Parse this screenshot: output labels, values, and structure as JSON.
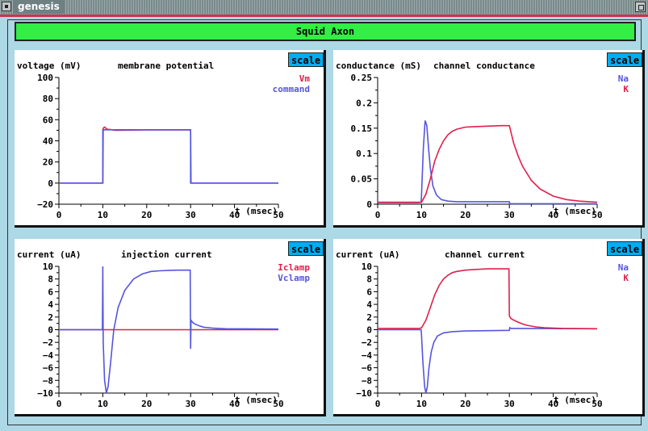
{
  "window": {
    "title": "genesis"
  },
  "header": {
    "label": "Squid Axon"
  },
  "colors": {
    "red": "#e0204a",
    "blue": "#5555dd"
  },
  "graphs": [
    {
      "id": "membrane",
      "ylabel": "voltage (mV)",
      "title": "membrane potential",
      "xlabel": "t (msec)",
      "scale_label": "scale",
      "legend": [
        "Vm",
        "command"
      ],
      "x_ticks": [
        "0",
        "10",
        "20",
        "30",
        "40",
        "50"
      ],
      "y_ticks": [
        "100",
        "80",
        "60",
        "40",
        "20",
        "0",
        "−20"
      ]
    },
    {
      "id": "conductance",
      "ylabel": "conductance (mS)",
      "title": "channel conductance",
      "xlabel": "t (msec)",
      "scale_label": "scale",
      "legend": [
        "Na",
        "K"
      ],
      "x_ticks": [
        "0",
        "10",
        "20",
        "30",
        "40",
        "50"
      ],
      "y_ticks": [
        "0.25",
        "0.2",
        "0.15",
        "0.1",
        "0.05",
        "0"
      ]
    },
    {
      "id": "injection",
      "ylabel": "current (uA)",
      "title": "injection current",
      "xlabel": "t (msec)",
      "scale_label": "scale",
      "legend": [
        "Iclamp",
        "Vclamp"
      ],
      "x_ticks": [
        "0",
        "10",
        "20",
        "30",
        "40",
        "50"
      ],
      "y_ticks": [
        "10",
        "8",
        "6",
        "4",
        "2",
        "0",
        "−2",
        "−4",
        "−6",
        "−8",
        "−10"
      ]
    },
    {
      "id": "channel",
      "ylabel": "current (uA)",
      "title": "channel current",
      "xlabel": "t (msec)",
      "scale_label": "scale",
      "legend": [
        "Na",
        "K"
      ],
      "x_ticks": [
        "0",
        "10",
        "20",
        "30",
        "40",
        "50"
      ],
      "y_ticks": [
        "10",
        "8",
        "6",
        "4",
        "2",
        "0",
        "−2",
        "−4",
        "−6",
        "−8",
        "−10"
      ]
    }
  ],
  "chart_data": [
    {
      "type": "line",
      "xlim": [
        0,
        50
      ],
      "ylim": [
        -20,
        100
      ],
      "series": [
        {
          "name": "Vm",
          "color": "#e0204a",
          "x": [
            0,
            10,
            10.1,
            10.4,
            11,
            13,
            16,
            20,
            29.9,
            30,
            30.1,
            50
          ],
          "y": [
            0,
            0,
            52,
            53,
            51,
            50,
            50.2,
            50.4,
            50.5,
            50.5,
            0,
            0
          ]
        },
        {
          "name": "command",
          "color": "#5555dd",
          "x": [
            0,
            10,
            10,
            30,
            30,
            50
          ],
          "y": [
            0,
            0,
            50.5,
            50.5,
            0,
            0
          ]
        }
      ]
    },
    {
      "type": "line",
      "xlim": [
        0,
        50
      ],
      "ylim": [
        0,
        0.25
      ],
      "series": [
        {
          "name": "Na",
          "color": "#5555dd",
          "x": [
            0,
            9.9,
            10,
            10.4,
            10.8,
            11.2,
            11.6,
            12,
            12.6,
            13.4,
            14.5,
            16,
            18,
            30,
            30.1,
            50
          ],
          "y": [
            0.004,
            0.004,
            0.02,
            0.11,
            0.165,
            0.155,
            0.11,
            0.07,
            0.036,
            0.018,
            0.009,
            0.006,
            0.005,
            0.005,
            0.001,
            0.001
          ]
        },
        {
          "name": "K",
          "color": "#e0204a",
          "x": [
            0,
            9.5,
            10,
            11,
            12,
            13,
            14,
            15,
            16,
            17,
            18,
            20,
            22,
            25,
            28,
            30,
            31,
            32,
            33,
            35,
            37,
            40,
            43,
            46,
            50
          ],
          "y": [
            0.003,
            0.003,
            0.004,
            0.02,
            0.05,
            0.085,
            0.108,
            0.125,
            0.137,
            0.144,
            0.148,
            0.152,
            0.153,
            0.154,
            0.155,
            0.155,
            0.12,
            0.095,
            0.075,
            0.047,
            0.03,
            0.016,
            0.009,
            0.006,
            0.004
          ]
        }
      ]
    },
    {
      "type": "line",
      "xlim": [
        0,
        50
      ],
      "ylim": [
        -10,
        10
      ],
      "series": [
        {
          "name": "Iclamp",
          "color": "#e0204a",
          "x": [
            0,
            50
          ],
          "y": [
            0,
            0
          ]
        },
        {
          "name": "Vclamp",
          "color": "#5555dd",
          "x": [
            0,
            9.9,
            10,
            10.1,
            10.4,
            10.8,
            11.2,
            11.8,
            12.5,
            13.5,
            15,
            17,
            19,
            21,
            23,
            25,
            27,
            29.9,
            30,
            30.1,
            30.3,
            30.7,
            31.3,
            32,
            33,
            35,
            38,
            50
          ],
          "y": [
            0,
            0,
            10,
            -2,
            -8,
            -10,
            -9,
            -5,
            0,
            3.5,
            6.2,
            8,
            8.8,
            9.2,
            9.3,
            9.35,
            9.4,
            9.4,
            -3,
            1.5,
            1.3,
            1.0,
            0.8,
            0.6,
            0.4,
            0.25,
            0.15,
            0.1
          ]
        }
      ]
    },
    {
      "type": "line",
      "xlim": [
        0,
        50
      ],
      "ylim": [
        -10,
        10
      ],
      "series": [
        {
          "name": "Na",
          "color": "#5555dd",
          "x": [
            0,
            9.9,
            10,
            10.3,
            10.7,
            11,
            11.3,
            11.7,
            12.2,
            12.8,
            13.6,
            15,
            17,
            20,
            30,
            30.1,
            30.4,
            50
          ],
          "y": [
            0,
            0,
            -1,
            -5,
            -9,
            -10,
            -9,
            -6,
            -3.5,
            -2,
            -1,
            -0.5,
            -0.3,
            -0.2,
            -0.1,
            0.3,
            0.2,
            0.15
          ]
        },
        {
          "name": "K",
          "color": "#e0204a",
          "x": [
            0,
            9.5,
            10,
            11,
            12,
            13,
            14,
            15,
            16,
            17,
            18,
            20,
            22,
            25,
            28,
            29.9,
            30,
            30.3,
            31,
            32,
            33,
            34,
            36,
            38,
            42,
            50
          ],
          "y": [
            0.2,
            0.2,
            0.3,
            1.5,
            3.5,
            5.5,
            7,
            8,
            8.6,
            9,
            9.2,
            9.4,
            9.5,
            9.6,
            9.6,
            9.6,
            2.2,
            1.8,
            1.5,
            1.2,
            0.9,
            0.7,
            0.45,
            0.3,
            0.2,
            0.15
          ]
        }
      ]
    }
  ]
}
